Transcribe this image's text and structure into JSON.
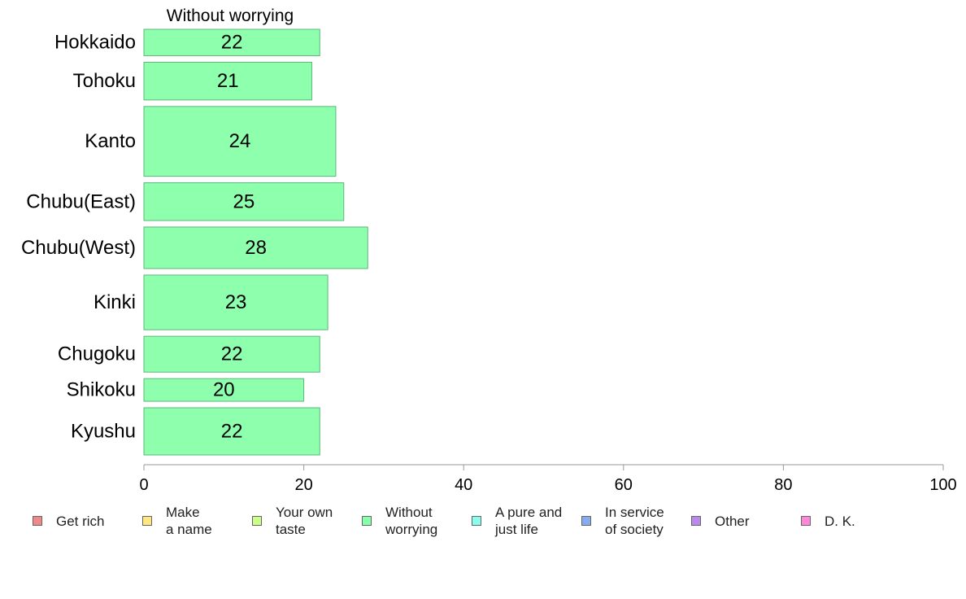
{
  "chart_data": {
    "type": "bar",
    "orientation": "horizontal",
    "title": "Without worrying",
    "categories": [
      "Hokkaido",
      "Tohoku",
      "Kanto",
      "Chubu(East)",
      "Chubu(West)",
      "Kinki",
      "Chugoku",
      "Shikoku",
      "Kyushu"
    ],
    "values": [
      22,
      21,
      24,
      25,
      28,
      23,
      22,
      20,
      22
    ],
    "bar_weights": [
      0.7,
      1.0,
      1.85,
      1.0,
      1.1,
      1.45,
      0.95,
      0.6,
      1.25
    ],
    "xlim": [
      0,
      100
    ],
    "xticks": [
      0,
      20,
      40,
      60,
      80,
      100
    ],
    "xlabel": "",
    "ylabel": "",
    "grid": false,
    "bar_color": "#8effad",
    "bar_border": "#5cb87a",
    "legend_position": "bottom",
    "legend": [
      {
        "label": "Get rich",
        "color": "#f08888"
      },
      {
        "label": "Make\na name",
        "color": "#ffe680"
      },
      {
        "label": "Your own\ntaste",
        "color": "#ccff88"
      },
      {
        "label": "Without\nworrying",
        "color": "#88ffaa"
      },
      {
        "label": "A pure and\njust life",
        "color": "#88ffee"
      },
      {
        "label": "In service\nof society",
        "color": "#88aaee"
      },
      {
        "label": "Other",
        "color": "#bb88ee"
      },
      {
        "label": "D. K.",
        "color": "#ff88dd"
      }
    ]
  }
}
